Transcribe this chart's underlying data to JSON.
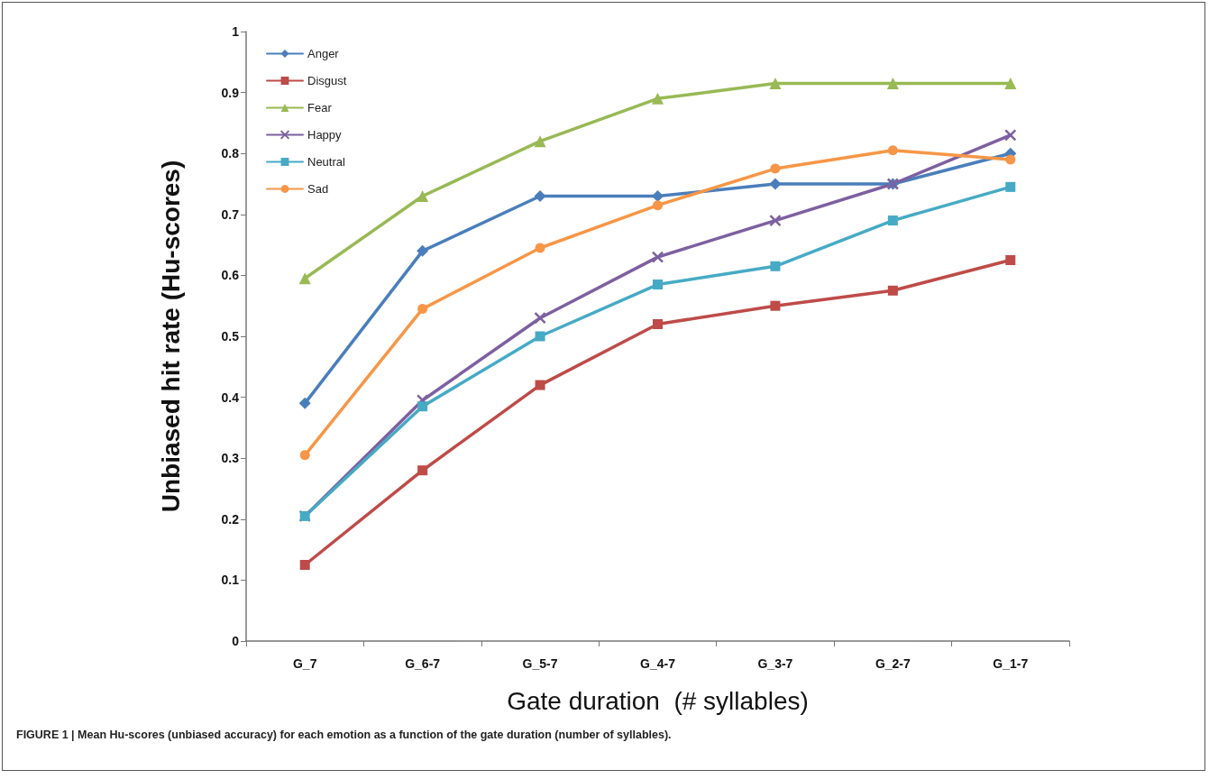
{
  "chart_data": {
    "type": "line",
    "xlabel": "Gate duration  (# syllables)",
    "ylabel": "Unbiased hit rate (Hu-scores)",
    "categories": [
      "G_7",
      "G_6-7",
      "G_5-7",
      "G_4-7",
      "G_3-7",
      "G_2-7",
      "G_1-7"
    ],
    "series": [
      {
        "name": "Anger",
        "color": "#4a7ebb",
        "marker": "diamond",
        "values": [
          0.39,
          0.64,
          0.73,
          0.73,
          0.75,
          0.75,
          0.8
        ]
      },
      {
        "name": "Disgust",
        "color": "#be4b48",
        "marker": "square",
        "values": [
          0.125,
          0.28,
          0.42,
          0.52,
          0.55,
          0.575,
          0.625
        ]
      },
      {
        "name": "Fear",
        "color": "#98b954",
        "marker": "triangle",
        "values": [
          0.595,
          0.73,
          0.82,
          0.89,
          0.915,
          0.915,
          0.915
        ]
      },
      {
        "name": "Happy",
        "color": "#7d60a0",
        "marker": "cross",
        "values": [
          0.205,
          0.395,
          0.53,
          0.63,
          0.69,
          0.75,
          0.83
        ]
      },
      {
        "name": "Neutral",
        "color": "#46aac5",
        "marker": "square",
        "values": [
          0.205,
          0.385,
          0.5,
          0.585,
          0.615,
          0.69,
          0.745
        ]
      },
      {
        "name": "Sad",
        "color": "#f79646",
        "marker": "circle",
        "values": [
          0.305,
          0.545,
          0.645,
          0.715,
          0.775,
          0.805,
          0.79
        ]
      }
    ],
    "ylim": [
      0,
      1
    ],
    "yticks": [
      0,
      0.1,
      0.2,
      0.3,
      0.4,
      0.5,
      0.6,
      0.7,
      0.8,
      0.9,
      1
    ],
    "grid": false,
    "legend": "top left",
    "line_style": "solid",
    "annotations": [
      "FIGURE 1 | Mean Hu-scores (unbiased accuracy) for each emotion as a function of the gate duration (number of syllables)."
    ]
  }
}
